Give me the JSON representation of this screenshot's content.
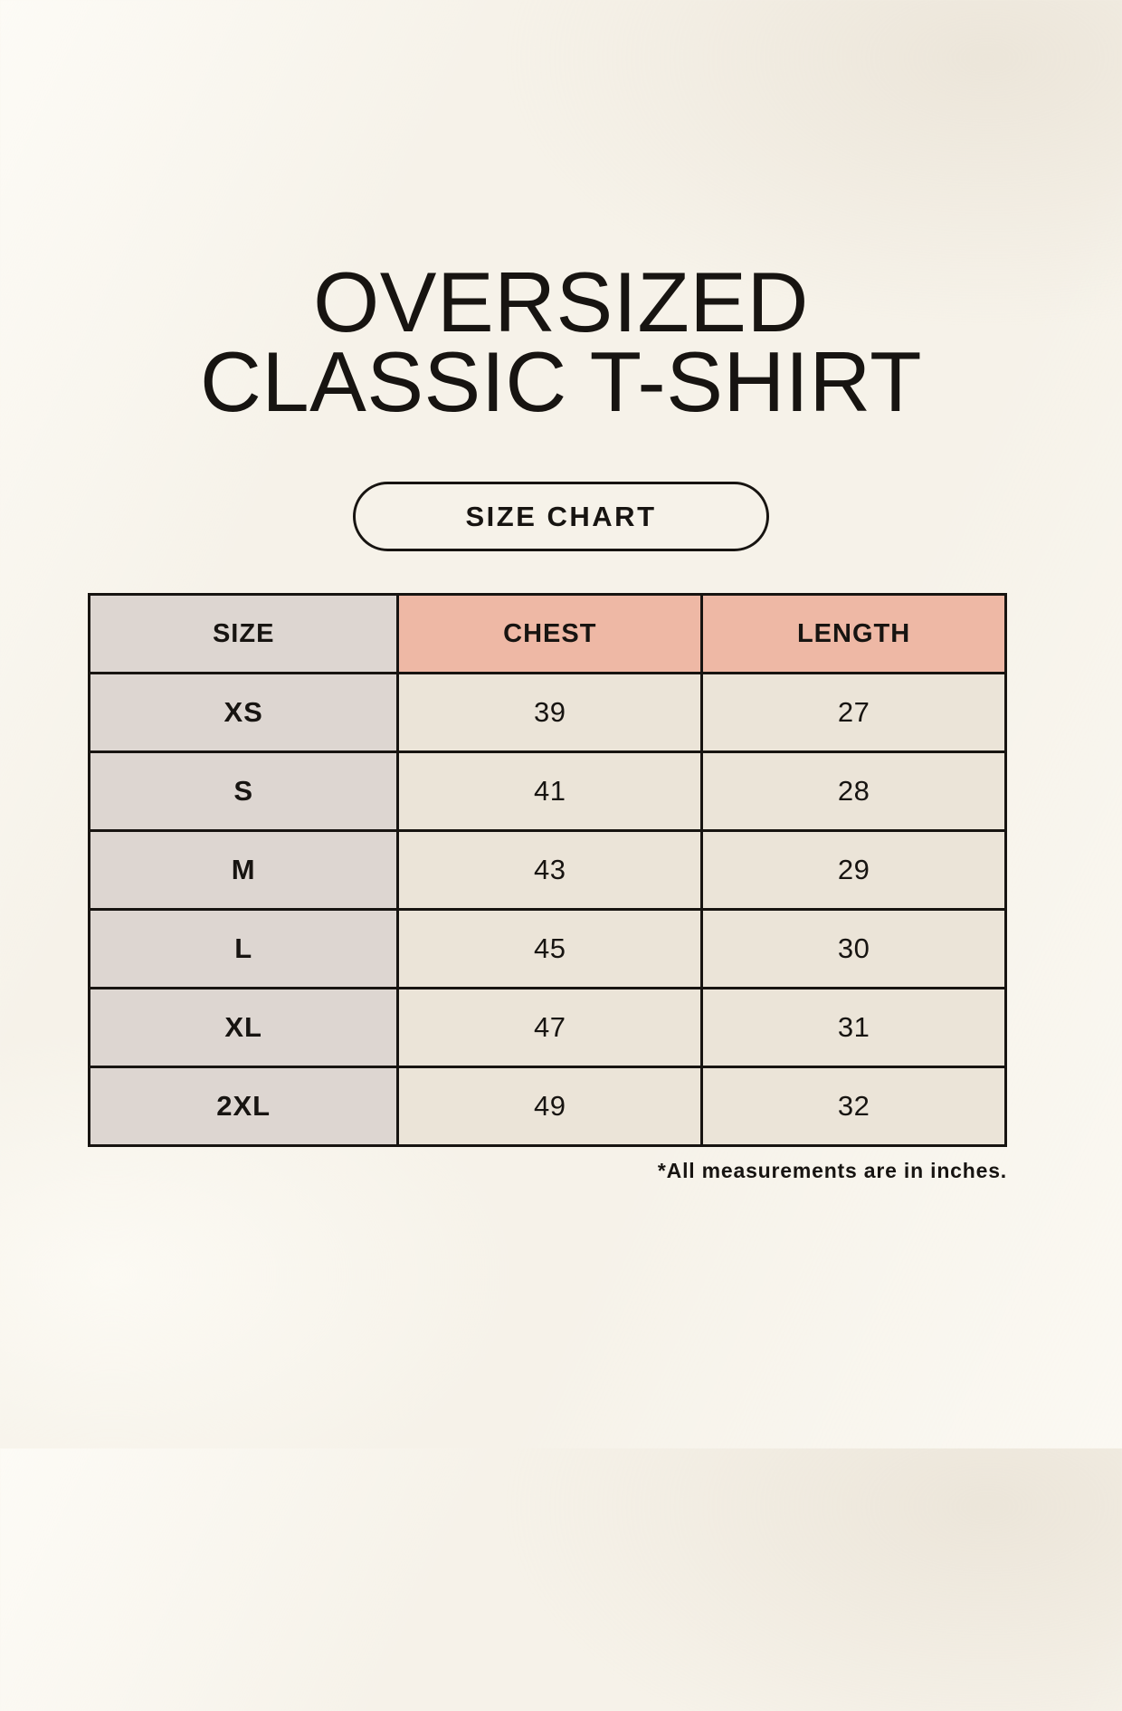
{
  "title": {
    "line1": "OVERSIZED",
    "line2": "CLASSIC T-SHIRT"
  },
  "size_chart_button": {
    "label": "SIZE CHART"
  },
  "table": {
    "headers": [
      "SIZE",
      "CHEST",
      "LENGTH"
    ],
    "rows": [
      {
        "size": "XS",
        "chest": "39",
        "length": "27"
      },
      {
        "size": "S",
        "chest": "41",
        "length": "28"
      },
      {
        "size": "M",
        "chest": "43",
        "length": "29"
      },
      {
        "size": "L",
        "chest": "45",
        "length": "30"
      },
      {
        "size": "XL",
        "chest": "47",
        "length": "31"
      },
      {
        "size": "2XL",
        "chest": "49",
        "length": "32"
      }
    ]
  },
  "footnote": "*All measurements are in inches.",
  "units": "inches",
  "colors": {
    "background": "#f6f2e9",
    "border": "#171411",
    "text": "#171411",
    "gray_cell": "#ddd6d1",
    "salmon": "#eeb8a5",
    "cream_cell": "#ebe4d8"
  }
}
